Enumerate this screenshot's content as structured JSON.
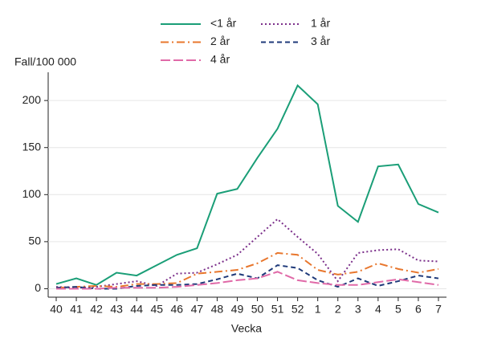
{
  "chart_data": {
    "type": "line",
    "y_label": "Fall/100 000",
    "x_label": "Vecka",
    "categories": [
      "40",
      "41",
      "42",
      "43",
      "44",
      "45",
      "46",
      "47",
      "48",
      "49",
      "50",
      "51",
      "52",
      "1",
      "2",
      "3",
      "4",
      "5",
      "6",
      "7"
    ],
    "ylim": [
      -9,
      230
    ],
    "yticks": [
      0,
      50,
      100,
      150,
      200
    ],
    "series": [
      {
        "name": "<1 år",
        "color": "#1a9e77",
        "dash": "solid",
        "values": [
          5,
          11,
          4,
          17,
          14,
          25,
          36,
          43,
          101,
          106,
          139,
          170,
          216,
          196,
          88,
          71,
          130,
          132,
          90,
          81
        ]
      },
      {
        "name": "1 år",
        "color": "#7b2f8a",
        "dash": "dot",
        "values": [
          2,
          1,
          2,
          5,
          8,
          3,
          16,
          17,
          26,
          36,
          55,
          74,
          55,
          37,
          8,
          38,
          41,
          42,
          30,
          29
        ]
      },
      {
        "name": "2 år",
        "color": "#e8772e",
        "dash": "dashdot",
        "values": [
          1,
          2,
          3,
          2,
          5,
          5,
          6,
          16,
          18,
          20,
          27,
          38,
          36,
          20,
          15,
          18,
          27,
          21,
          17,
          21
        ]
      },
      {
        "name": "3 år",
        "color": "#1f3a7a",
        "dash": "dash",
        "values": [
          1,
          2,
          0,
          0,
          3,
          4,
          4,
          5,
          10,
          16,
          11,
          25,
          22,
          9,
          2,
          11,
          3,
          8,
          14,
          11
        ]
      },
      {
        "name": "4 år",
        "color": "#e06aa8",
        "dash": "longdash",
        "values": [
          0,
          0,
          0,
          1,
          1,
          1,
          2,
          4,
          6,
          9,
          11,
          18,
          9,
          6,
          4,
          4,
          7,
          10,
          7,
          4
        ]
      }
    ]
  }
}
